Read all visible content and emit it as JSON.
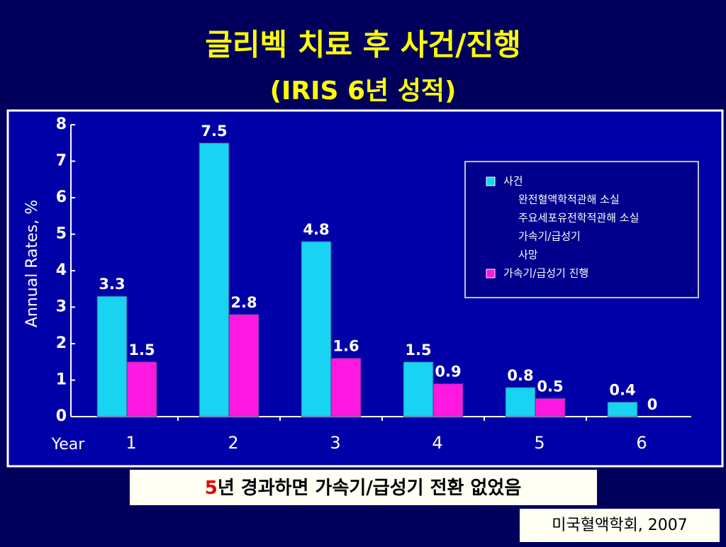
{
  "chart_data": {
    "type": "bar",
    "title": "글리벡 치료 후 사건/진행",
    "subtitle": "(IRIS 6년 성적)",
    "x_label": "Year",
    "y_label": "Annual Rates, %",
    "categories": [
      "1",
      "2",
      "3",
      "4",
      "5",
      "6"
    ],
    "series": [
      {
        "name": "사건",
        "color": "#19d3f2",
        "values": [
          3.3,
          7.5,
          4.8,
          1.5,
          0.8,
          0.4
        ],
        "details": [
          "완전혈액학적관해 소실",
          "주요세포유전학적관해 소실",
          "가속기/급성기",
          "사망"
        ]
      },
      {
        "name": "가속기/급성기 진행",
        "color": "#ff19e0",
        "values": [
          1.5,
          2.8,
          1.6,
          0.9,
          0.5,
          0
        ]
      }
    ],
    "ylim": [
      0,
      8
    ],
    "yticks": [
      0,
      1,
      2,
      3,
      4,
      5,
      6,
      7,
      8
    ],
    "annotation": [
      "5",
      "년 경과하면 가속기/급성기 전환 없었음"
    ],
    "source": "미국혈액학회, 2007"
  }
}
